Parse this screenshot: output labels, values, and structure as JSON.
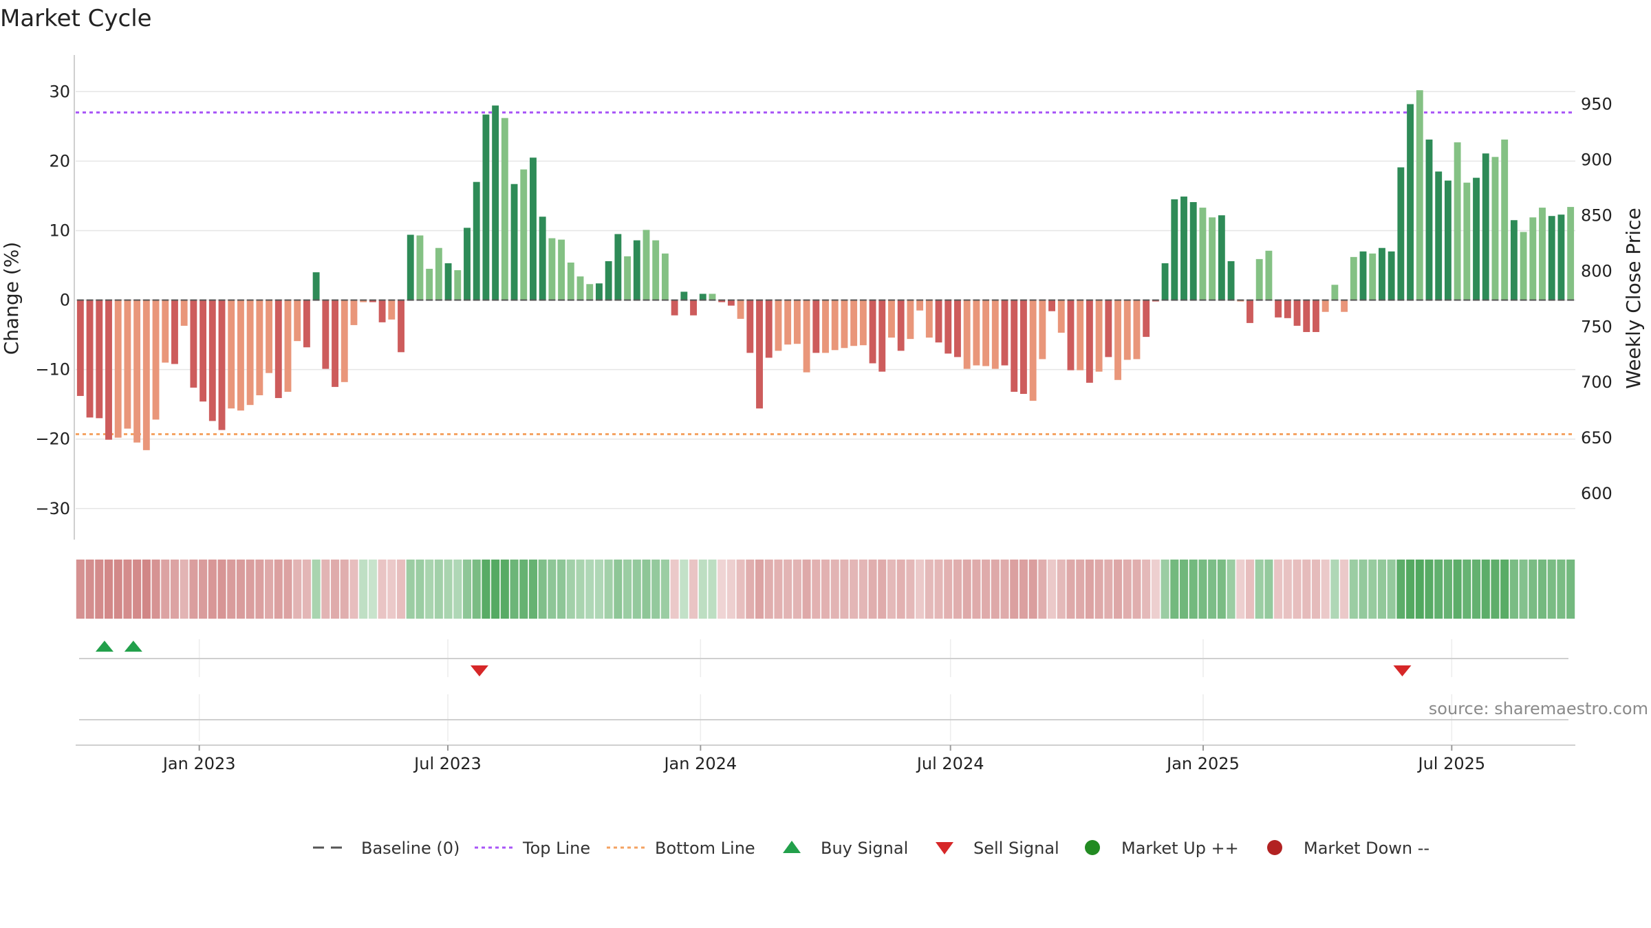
{
  "title": "Market Cycle",
  "source_text": "source: sharemaestro.com",
  "colors": {
    "up_strong": "#2e8b57",
    "up_light": "#84c184",
    "down_strong": "#cd5c5c",
    "down_light": "#e9967a",
    "top_line": "#a855f7",
    "bottom_line": "#f4a261",
    "baseline": "#555555",
    "buy": "#22a04b",
    "sell": "#d62728",
    "market_up": "#228b22",
    "market_down": "#b22222",
    "grid": "#e6e6e6"
  },
  "legend": [
    {
      "key": "baseline",
      "label": "Baseline (0)"
    },
    {
      "key": "top",
      "label": "Top Line"
    },
    {
      "key": "bottom",
      "label": "Bottom Line"
    },
    {
      "key": "buy",
      "label": "Buy Signal"
    },
    {
      "key": "sell",
      "label": "Sell Signal"
    },
    {
      "key": "mup",
      "label": "Market Up ++"
    },
    {
      "key": "mdown",
      "label": "Market Down --"
    }
  ],
  "chart_data": {
    "type": "bar",
    "ylabel": "Change (%)",
    "y2label": "Weekly Close Price",
    "ylim": [
      -32,
      32.5
    ],
    "yticks": [
      -30,
      -20,
      -10,
      0,
      10,
      20,
      30
    ],
    "ytick_labels": [
      "−30",
      "−20",
      "−10",
      "0",
      "10",
      "20",
      "30"
    ],
    "y2lim": [
      574,
      977
    ],
    "y2ticks": [
      600,
      650,
      700,
      750,
      800,
      850,
      900,
      950
    ],
    "x_start": "2022-10-03",
    "x_end": "2025-09-29",
    "week_step_days": 7,
    "xticks": [
      "2023-01-01",
      "2023-07-01",
      "2024-01-01",
      "2024-07-01",
      "2025-01-01",
      "2025-07-01"
    ],
    "xtick_labels": [
      "Jan 2023",
      "Jul 2023",
      "Jan 2024",
      "Jul 2024",
      "Jan 2025",
      "Jul 2025"
    ],
    "top_line": 27,
    "bottom_line": -19.3,
    "values": [
      -13.8,
      -16.9,
      -17,
      -20.1,
      -19.8,
      -18.5,
      -20.5,
      -21.6,
      -17.2,
      -9,
      -9.2,
      -3.7,
      -12.6,
      -14.6,
      -17.4,
      -18.7,
      -15.6,
      -15.9,
      -15.1,
      -13.7,
      -10.5,
      -14.1,
      -13.2,
      -5.9,
      -6.8,
      4,
      -9.9,
      -12.5,
      -11.8,
      -3.6,
      -0.3,
      -0.3,
      -3.2,
      -2.8,
      -7.5,
      9.4,
      9.3,
      4.5,
      7.5,
      5.3,
      4.3,
      10.4,
      17,
      26.7,
      28,
      26.2,
      16.7,
      18.8,
      20.5,
      12,
      8.9,
      8.7,
      5.4,
      3.4,
      2.3,
      2.4,
      5.6,
      9.5,
      6.3,
      8.6,
      10.1,
      8.6,
      6.7,
      -2.2,
      1.2,
      -2.2,
      0.9,
      0.9,
      -0.3,
      -0.8,
      -2.7,
      -7.6,
      -15.6,
      -8.3,
      -7.3,
      -6.4,
      -6.3,
      -10.4,
      -7.6,
      -7.6,
      -7.2,
      -6.9,
      -6.6,
      -6.5,
      -9.1,
      -10.3,
      -5.4,
      -7.3,
      -5.6,
      -1.5,
      -5.4,
      -6.1,
      -7.7,
      -8.2,
      -9.9,
      -9.4,
      -9.5,
      -9.9,
      -9.4,
      -13.2,
      -13.5,
      -14.5,
      -8.5,
      -1.6,
      -4.7,
      -10.1,
      -10.1,
      -11.9,
      -10.3,
      -8.2,
      -11.5,
      -8.6,
      -8.5,
      -5.3,
      -0.2,
      5.3,
      14.5,
      14.9,
      14.1,
      13.3,
      11.9,
      12.2,
      5.6,
      -0.2,
      -3.3,
      5.9,
      7.1,
      -2.5,
      -2.6,
      -3.7,
      -4.6,
      -4.6,
      -1.7,
      2.2,
      -1.7,
      6.2,
      7,
      6.7,
      7.5,
      7,
      19.1,
      28.2,
      30.2,
      23.1,
      18.5,
      17.2,
      22.7,
      16.9,
      17.6,
      21.1,
      20.6,
      23.1,
      11.5,
      9.8,
      11.9,
      13.3,
      12.1,
      12.3,
      13.4
    ],
    "strong_flags": "SSSSLLLLLLSLSSSSLLLLLSLLSSSSLLLSSLSSLLLSLSSSSLSLSSLLLLLSSSLSLLLSSSSLSSLSSSLLLLSLLLLLSSLSLLLSSSLLLLSSSLLSLSLSLSLLLSSSSSSLLSSLSLLSSSSSLLLLSLSSSSLSSSLLSSLLSLLLSSLSSLSS",
    "heat_levels": [
      -0.72,
      -0.75,
      -0.77,
      -0.8,
      -0.79,
      -0.76,
      -0.78,
      -0.82,
      -0.7,
      -0.55,
      -0.55,
      -0.4,
      -0.6,
      -0.62,
      -0.66,
      -0.68,
      -0.62,
      -0.62,
      -0.6,
      -0.58,
      -0.5,
      -0.58,
      -0.56,
      -0.4,
      -0.38,
      0.35,
      -0.4,
      -0.48,
      -0.45,
      -0.3,
      0.18,
      0.12,
      -0.25,
      -0.2,
      -0.3,
      0.45,
      0.45,
      0.35,
      0.4,
      0.35,
      0.3,
      0.55,
      0.7,
      0.95,
      0.97,
      0.95,
      0.8,
      0.85,
      0.85,
      0.65,
      0.55,
      0.55,
      0.4,
      0.35,
      0.3,
      0.3,
      0.4,
      0.55,
      0.45,
      0.5,
      0.55,
      0.5,
      0.45,
      -0.2,
      0.15,
      -0.25,
      0.2,
      0.2,
      -0.1,
      -0.15,
      -0.3,
      -0.45,
      -0.55,
      -0.45,
      -0.42,
      -0.4,
      -0.4,
      -0.5,
      -0.42,
      -0.42,
      -0.4,
      -0.4,
      -0.38,
      -0.38,
      -0.45,
      -0.48,
      -0.35,
      -0.42,
      -0.36,
      -0.2,
      -0.35,
      -0.37,
      -0.42,
      -0.45,
      -0.5,
      -0.48,
      -0.48,
      -0.5,
      -0.48,
      -0.58,
      -0.58,
      -0.6,
      -0.45,
      -0.2,
      -0.35,
      -0.5,
      -0.5,
      -0.55,
      -0.5,
      -0.45,
      -0.52,
      -0.46,
      -0.45,
      -0.35,
      -0.15,
      0.45,
      0.75,
      0.77,
      0.75,
      0.72,
      0.68,
      0.7,
      0.45,
      -0.15,
      -0.3,
      0.45,
      0.5,
      -0.25,
      -0.27,
      -0.3,
      -0.33,
      -0.33,
      -0.2,
      0.3,
      -0.2,
      0.45,
      0.5,
      0.48,
      0.52,
      0.5,
      0.92,
      0.98,
      1.0,
      0.95,
      0.88,
      0.85,
      0.92,
      0.84,
      0.86,
      0.92,
      0.9,
      0.94,
      0.7,
      0.62,
      0.7,
      0.74,
      0.7,
      0.7,
      0.74
    ],
    "buy_signals": [
      "2022-10-24",
      "2022-11-14"
    ],
    "sell_signals": [
      "2023-07-24",
      "2025-05-26"
    ]
  }
}
